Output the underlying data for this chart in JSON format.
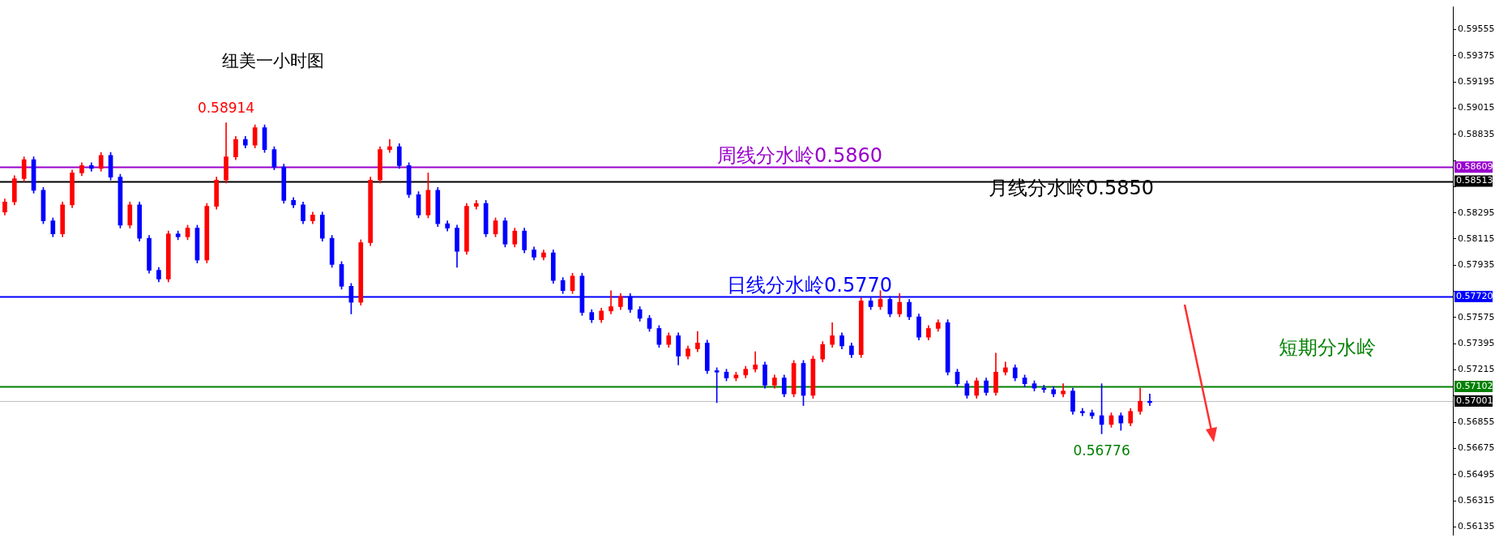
{
  "chart_data": {
    "type": "candlestick",
    "title": "纽美一小时图",
    "tick_labels": "y",
    "ylim": [
      0.5608,
      0.5971
    ],
    "yticks": [
      0.56135,
      0.56315,
      0.56495,
      0.56675,
      0.56855,
      {
        "value": 0.57035,
        "label": null
      },
      0.57215,
      0.57395,
      0.57575,
      {
        "value": 0.57755,
        "label": null
      },
      0.57935,
      0.58115,
      0.58295,
      {
        "value": 0.58475,
        "label": null
      },
      {
        "value": 0.58655,
        "label": null
      },
      0.58835,
      0.59015,
      0.59195,
      0.59375,
      0.59555
    ],
    "categories": [
      null,
      null,
      null,
      null,
      null,
      null,
      null,
      null,
      null,
      null,
      null,
      null,
      null,
      null,
      null,
      null,
      null,
      null,
      null,
      null,
      null,
      null,
      null,
      null,
      null,
      null,
      null,
      null,
      null,
      null,
      null,
      null,
      null,
      null,
      null,
      null,
      null,
      null,
      null,
      null,
      null,
      null,
      null,
      null,
      null,
      null,
      null,
      null,
      null,
      null,
      null,
      null,
      null,
      null,
      null,
      null,
      null,
      null,
      null,
      null,
      null,
      null,
      null,
      null,
      null,
      null,
      null,
      null,
      null,
      null,
      null,
      null,
      null,
      null,
      null,
      null,
      null,
      null,
      null,
      null,
      null,
      null,
      null,
      null,
      null,
      null,
      null,
      null,
      null,
      null,
      null,
      null,
      null,
      null,
      null,
      null,
      null,
      null,
      null,
      null,
      null,
      null,
      null,
      null,
      null,
      null,
      null,
      null,
      null,
      null,
      null,
      null,
      null,
      null,
      null,
      null,
      null,
      null,
      null,
      null,
      null,
      null,
      null,
      null,
      null,
      null,
      null,
      null,
      null,
      null,
      null,
      null,
      null,
      null,
      null,
      null,
      null,
      null,
      null,
      null,
      null,
      null,
      null,
      null,
      null,
      null,
      null,
      null,
      null,
      null,
      null
    ],
    "ohlc": [
      [
        0.583,
        0.5839,
        0.5828,
        0.5837
      ],
      [
        0.5837,
        0.5855,
        0.5835,
        0.5853
      ],
      [
        0.5853,
        0.5868,
        0.5851,
        0.5866
      ],
      [
        0.5866,
        0.5868,
        0.5843,
        0.5845
      ],
      [
        0.5845,
        0.5847,
        0.5822,
        0.5824
      ],
      [
        0.5824,
        0.5826,
        0.5813,
        0.5815
      ],
      [
        0.5815,
        0.5837,
        0.5813,
        0.5835
      ],
      [
        0.5835,
        0.5859,
        0.5833,
        0.5857
      ],
      [
        0.5857,
        0.5864,
        0.5855,
        0.5862
      ],
      [
        0.5862,
        0.5864,
        0.5858,
        0.586
      ],
      [
        0.586,
        0.5871,
        0.5858,
        0.5869
      ],
      [
        0.5869,
        0.5871,
        0.5852,
        0.5854
      ],
      [
        0.5854,
        0.5856,
        0.5819,
        0.5821
      ],
      [
        0.5821,
        0.5837,
        0.5819,
        0.5835
      ],
      [
        0.5835,
        0.5837,
        0.581,
        0.5812
      ],
      [
        0.5812,
        0.5814,
        0.5788,
        0.579
      ],
      [
        0.579,
        0.5792,
        0.5782,
        0.5784
      ],
      [
        0.5784,
        0.5817,
        0.5782,
        0.5815
      ],
      [
        0.5815,
        0.5817,
        0.5811,
        0.5813
      ],
      [
        0.5813,
        0.5821,
        0.5811,
        0.5819
      ],
      [
        0.5819,
        0.5821,
        0.5795,
        0.5797
      ],
      [
        0.5797,
        0.5836,
        0.5795,
        0.5834
      ],
      [
        0.5834,
        0.5854,
        0.5832,
        0.5852
      ],
      [
        0.5852,
        0.58914,
        0.585,
        0.5868
      ],
      [
        0.5868,
        0.5882,
        0.5866,
        0.588
      ],
      [
        0.588,
        0.5882,
        0.5874,
        0.5876
      ],
      [
        0.5876,
        0.589,
        0.5874,
        0.5888
      ],
      [
        0.5888,
        0.589,
        0.5871,
        0.5873
      ],
      [
        0.5873,
        0.5875,
        0.5859,
        0.5861
      ],
      [
        0.5861,
        0.5863,
        0.5836,
        0.5838
      ],
      [
        0.5838,
        0.584,
        0.5833,
        0.5835
      ],
      [
        0.5835,
        0.5837,
        0.5822,
        0.5824
      ],
      [
        0.5824,
        0.583,
        0.5822,
        0.5828
      ],
      [
        0.5828,
        0.583,
        0.581,
        0.5812
      ],
      [
        0.5812,
        0.5814,
        0.5792,
        0.5794
      ],
      [
        0.5794,
        0.5796,
        0.5777,
        0.5779
      ],
      [
        0.5779,
        0.5781,
        0.576,
        0.5768
      ],
      [
        0.5768,
        0.5811,
        0.5766,
        0.5809
      ],
      [
        0.5809,
        0.5854,
        0.5807,
        0.5852
      ],
      [
        0.5852,
        0.5875,
        0.585,
        0.5873
      ],
      [
        0.5873,
        0.588,
        0.5871,
        0.5875
      ],
      [
        0.5875,
        0.5877,
        0.586,
        0.5862
      ],
      [
        0.5862,
        0.5864,
        0.584,
        0.5842
      ],
      [
        0.5842,
        0.5844,
        0.5826,
        0.5828
      ],
      [
        0.5828,
        0.5857,
        0.5826,
        0.5845
      ],
      [
        0.5845,
        0.5847,
        0.582,
        0.5822
      ],
      [
        0.5822,
        0.5824,
        0.5817,
        0.5819
      ],
      [
        0.5819,
        0.5821,
        0.5792,
        0.5803
      ],
      [
        0.5803,
        0.5836,
        0.5801,
        0.5834
      ],
      [
        0.5834,
        0.5838,
        0.5832,
        0.5836
      ],
      [
        0.5836,
        0.5838,
        0.5813,
        0.5815
      ],
      [
        0.5815,
        0.5826,
        0.5813,
        0.5824
      ],
      [
        0.5824,
        0.5826,
        0.5806,
        0.5808
      ],
      [
        0.5808,
        0.5819,
        0.5806,
        0.5817
      ],
      [
        0.5817,
        0.5819,
        0.5802,
        0.5804
      ],
      [
        0.5804,
        0.5806,
        0.5797,
        0.5799
      ],
      [
        0.5799,
        0.5804,
        0.5797,
        0.5802
      ],
      [
        0.5802,
        0.5804,
        0.5781,
        0.5783
      ],
      [
        0.5783,
        0.5785,
        0.5774,
        0.5776
      ],
      [
        0.5776,
        0.5788,
        0.5774,
        0.5786
      ],
      [
        0.5786,
        0.5788,
        0.5759,
        0.5761
      ],
      [
        0.5761,
        0.5763,
        0.5754,
        0.5756
      ],
      [
        0.5756,
        0.5764,
        0.5754,
        0.5762
      ],
      [
        0.5762,
        0.5776,
        0.576,
        0.5765
      ],
      [
        0.5765,
        0.5774,
        0.5763,
        0.5772
      ],
      [
        0.5772,
        0.5774,
        0.5761,
        0.5763
      ],
      [
        0.5763,
        0.5765,
        0.5755,
        0.5757
      ],
      [
        0.5757,
        0.5759,
        0.5748,
        0.575
      ],
      [
        0.575,
        0.5752,
        0.5737,
        0.5739
      ],
      [
        0.5739,
        0.5747,
        0.5737,
        0.5745
      ],
      [
        0.5745,
        0.5747,
        0.5725,
        0.5731
      ],
      [
        0.5731,
        0.5738,
        0.5729,
        0.5736
      ],
      [
        0.5736,
        0.5748,
        0.5734,
        0.574
      ],
      [
        0.574,
        0.5742,
        0.5719,
        0.5721
      ],
      [
        0.5721,
        0.5723,
        0.5699,
        0.572
      ],
      [
        0.572,
        0.5722,
        0.5714,
        0.5716
      ],
      [
        0.5716,
        0.572,
        0.5714,
        0.5718
      ],
      [
        0.5718,
        0.5724,
        0.5716,
        0.5722
      ],
      [
        0.5722,
        0.5734,
        0.572,
        0.5725
      ],
      [
        0.5725,
        0.5727,
        0.5709,
        0.5711
      ],
      [
        0.5711,
        0.5718,
        0.5709,
        0.5716
      ],
      [
        0.5716,
        0.5718,
        0.5703,
        0.5705
      ],
      [
        0.5705,
        0.5728,
        0.5703,
        0.5726
      ],
      [
        0.5726,
        0.5728,
        0.5697,
        0.5704
      ],
      [
        0.5704,
        0.5731,
        0.5702,
        0.5729
      ],
      [
        0.5729,
        0.5741,
        0.5727,
        0.5739
      ],
      [
        0.5739,
        0.5754,
        0.5737,
        0.5745
      ],
      [
        0.5745,
        0.5747,
        0.5736,
        0.5738
      ],
      [
        0.5738,
        0.574,
        0.573,
        0.5732
      ],
      [
        0.5732,
        0.5771,
        0.573,
        0.5769
      ],
      [
        0.5769,
        0.5771,
        0.5763,
        0.5765
      ],
      [
        0.5765,
        0.5776,
        0.5763,
        0.577
      ],
      [
        0.577,
        0.5772,
        0.5758,
        0.576
      ],
      [
        0.576,
        0.5774,
        0.5758,
        0.5768
      ],
      [
        0.5768,
        0.577,
        0.5756,
        0.5758
      ],
      [
        0.5758,
        0.576,
        0.5742,
        0.5744
      ],
      [
        0.5744,
        0.5752,
        0.5742,
        0.575
      ],
      [
        0.575,
        0.5756,
        0.5748,
        0.5754
      ],
      [
        0.5754,
        0.5756,
        0.5718,
        0.572
      ],
      [
        0.572,
        0.5722,
        0.571,
        0.5712
      ],
      [
        0.5712,
        0.5714,
        0.5702,
        0.5704
      ],
      [
        0.5704,
        0.5716,
        0.5702,
        0.5714
      ],
      [
        0.5714,
        0.5716,
        0.5704,
        0.5706
      ],
      [
        0.5706,
        0.5733,
        0.5704,
        0.572
      ],
      [
        0.572,
        0.5727,
        0.5718,
        0.5723
      ],
      [
        0.5723,
        0.5725,
        0.5714,
        0.5716
      ],
      [
        0.5716,
        0.5718,
        0.571,
        0.5712
      ],
      [
        0.5712,
        0.5714,
        0.5707,
        0.5709
      ],
      [
        0.5709,
        0.5711,
        0.5706,
        0.5708
      ],
      [
        0.5708,
        0.571,
        0.5703,
        0.5705
      ],
      [
        0.5705,
        0.5712,
        0.5703,
        0.5707
      ],
      [
        0.5707,
        0.5709,
        0.5691,
        0.5693
      ],
      [
        0.5693,
        0.5695,
        0.569,
        0.5692
      ],
      [
        0.5692,
        0.5694,
        0.5688,
        0.569
      ],
      [
        0.569,
        0.5712,
        0.56776,
        0.5684
      ],
      [
        0.5684,
        0.5692,
        0.5682,
        0.569
      ],
      [
        0.569,
        0.5692,
        0.568,
        0.5685
      ],
      [
        0.5685,
        0.5695,
        0.5683,
        0.5693
      ],
      [
        0.5693,
        0.5709,
        0.5691,
        0.57
      ],
      [
        0.57,
        0.5705,
        0.5697,
        0.5699
      ],
      null,
      null,
      null,
      null,
      null,
      null,
      null,
      null,
      null,
      null,
      null,
      null,
      null,
      null,
      null,
      null,
      null,
      null,
      null,
      null,
      null,
      null,
      null,
      null,
      null,
      null,
      null,
      null,
      null,
      null,
      null
    ],
    "colors": [
      "#ff0000",
      "#ff0000",
      "#ff0000",
      "#0000ff",
      "#0000ff",
      "#0000ff",
      "#ff0000",
      "#ff0000",
      "#ff0000",
      "#0000ff",
      "#ff0000",
      "#0000ff",
      "#0000ff",
      "#ff0000",
      "#0000ff",
      "#0000ff",
      "#0000ff",
      "#ff0000",
      "#0000ff",
      "#ff0000",
      "#0000ff",
      "#ff0000",
      "#ff0000",
      "#ff0000",
      "#ff0000",
      "#0000ff",
      "#ff0000",
      "#0000ff",
      "#0000ff",
      "#0000ff",
      "#0000ff",
      "#0000ff",
      "#ff0000",
      "#0000ff",
      "#0000ff",
      "#0000ff",
      "#0000ff",
      "#ff0000",
      "#ff0000",
      "#ff0000",
      "#ff0000",
      "#0000ff",
      "#0000ff",
      "#0000ff",
      "#ff0000",
      "#0000ff",
      "#0000ff",
      "#0000ff",
      "#ff0000",
      "#ff0000",
      "#0000ff",
      "#ff0000",
      "#0000ff",
      "#ff0000",
      "#0000ff",
      "#0000ff",
      "#ff0000",
      "#0000ff",
      "#0000ff",
      "#ff0000",
      "#0000ff",
      "#0000ff",
      "#ff0000",
      "#ff0000",
      "#ff0000",
      "#0000ff",
      "#0000ff",
      "#0000ff",
      "#0000ff",
      "#ff0000",
      "#0000ff",
      "#ff0000",
      "#ff0000",
      "#0000ff",
      "#0000ff",
      "#0000ff",
      "#ff0000",
      "#ff0000",
      "#ff0000",
      "#0000ff",
      "#ff0000",
      "#0000ff",
      "#ff0000",
      "#0000ff",
      "#ff0000",
      "#ff0000",
      "#ff0000",
      "#0000ff",
      "#0000ff",
      "#ff0000",
      "#0000ff",
      "#ff0000",
      "#0000ff",
      "#ff0000",
      "#0000ff",
      "#0000ff",
      "#ff0000",
      "#ff0000",
      "#0000ff",
      "#0000ff",
      "#0000ff",
      "#ff0000",
      "#0000ff",
      "#ff0000",
      "#ff0000",
      "#0000ff",
      "#0000ff",
      "#0000ff",
      "#0000ff",
      "#0000ff",
      "#ff0000",
      "#0000ff",
      "#0000ff",
      "#0000ff",
      "#0000ff",
      "#ff0000",
      "#0000ff",
      "#ff0000",
      "#ff0000",
      "#0000ff",
      null,
      null,
      null,
      null,
      null,
      null,
      null,
      null,
      null,
      null,
      null,
      null,
      null,
      null,
      null,
      null,
      null,
      null,
      null,
      null,
      null,
      null,
      null,
      null,
      null,
      null,
      null,
      null,
      null,
      null,
      null
    ],
    "ref_lines": [
      {
        "axis": "y",
        "value": 0.58609,
        "label": "周线分水岭0.5860",
        "color": "#9900cc"
      },
      {
        "axis": "y",
        "value": 0.58513,
        "label": "月线分水岭0.5850",
        "color": "#000000"
      },
      {
        "axis": "y",
        "value": 0.5772,
        "label": "日线分水岭0.5770",
        "color": "#0000ff"
      },
      {
        "axis": "y",
        "value": 0.57102,
        "label": "短期分水岭",
        "color": "#008000"
      },
      {
        "axis": "y",
        "value": 0.57001,
        "label": null,
        "color": "#c0c0c0"
      }
    ],
    "annotations": [
      {
        "text": "0.58914",
        "y": 0.58914
      },
      {
        "text": "0.56776",
        "y": 0.56776
      },
      "0.58609",
      "0.58513",
      "0.57720",
      "0.57102",
      "0.57001"
    ]
  }
}
